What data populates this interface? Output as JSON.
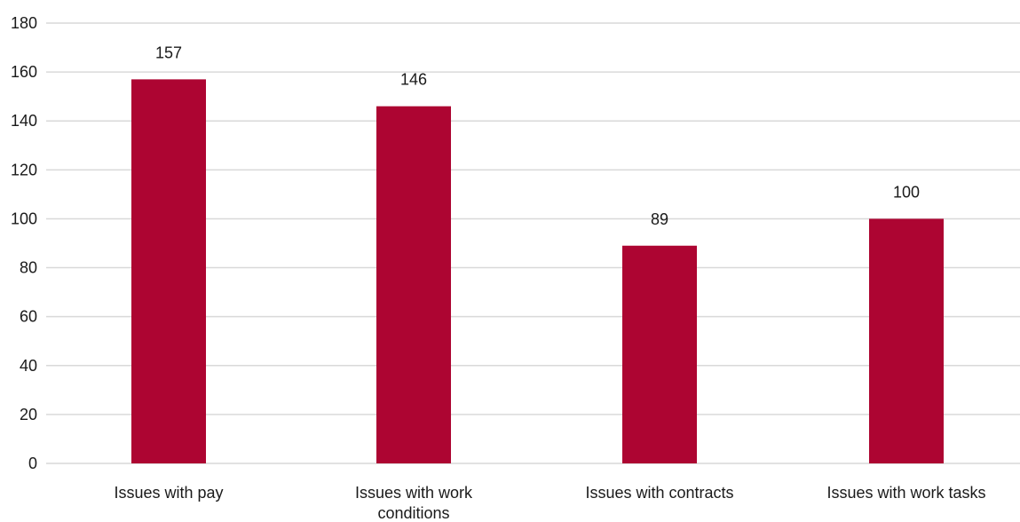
{
  "chart_data": {
    "type": "bar",
    "categories": [
      "Issues with pay",
      [
        "Issues with work",
        "conditions"
      ],
      "Issues with contracts",
      "Issues with work tasks"
    ],
    "values": [
      157,
      146,
      89,
      100
    ],
    "data_labels": [
      "157",
      "146",
      "89",
      "100"
    ],
    "y_ticks": [
      "0",
      "20",
      "40",
      "60",
      "80",
      "100",
      "120",
      "140",
      "160",
      "180"
    ],
    "ylim": [
      0,
      180
    ],
    "grid": true,
    "legend": "none",
    "bar_color": "#ad0532",
    "grid_color": "#d9d9d9"
  }
}
